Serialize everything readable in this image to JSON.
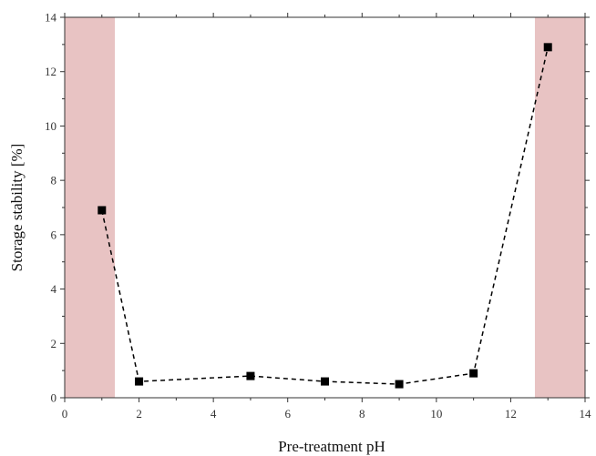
{
  "chart_data": {
    "type": "scatter",
    "title": "",
    "xlabel": "Pre-treatment pH",
    "ylabel": "Storage stability [%]",
    "xlim": [
      0,
      14
    ],
    "ylim": [
      0,
      14
    ],
    "xticks": [
      0,
      2,
      4,
      6,
      8,
      10,
      12,
      14
    ],
    "yticks": [
      0,
      2,
      4,
      6,
      8,
      10,
      12,
      14
    ],
    "grid": false,
    "line_style": "dashed",
    "marker": "square",
    "shaded_regions": [
      {
        "x_start": 0,
        "x_end": 1.35,
        "color": "#e8c3c3"
      },
      {
        "x_start": 12.65,
        "x_end": 14,
        "color": "#e8c3c3"
      }
    ],
    "series": [
      {
        "x": [
          1,
          2,
          5,
          7,
          9,
          11,
          13
        ],
        "y": [
          6.9,
          0.6,
          0.8,
          0.6,
          0.5,
          0.9,
          12.9
        ],
        "color": "#000000"
      }
    ]
  }
}
